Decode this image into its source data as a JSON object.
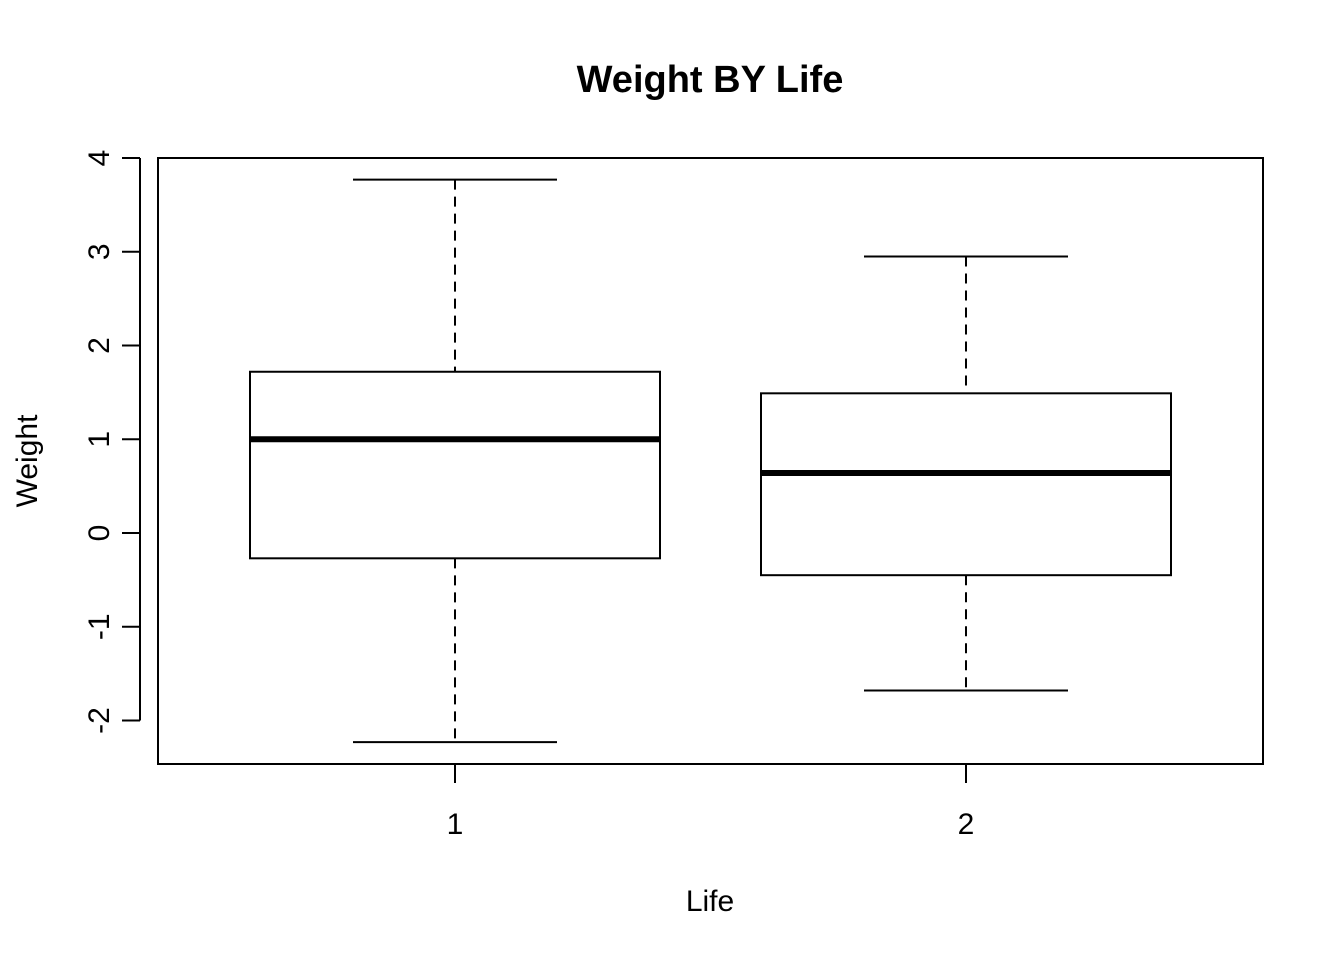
{
  "chart_data": {
    "type": "box",
    "title": "Weight BY Life",
    "xlabel": "Life",
    "ylabel": "Weight",
    "ylim": [
      -2.45,
      4.0
    ],
    "y_ticks": [
      "-2",
      "-1",
      "0",
      "1",
      "2",
      "3",
      "4"
    ],
    "grid": false,
    "categories": [
      "1",
      "2"
    ],
    "boxes": [
      {
        "category": "1",
        "whisker_low": -2.23,
        "q1": -0.27,
        "median": 1.0,
        "q3": 1.72,
        "whisker_high": 3.77
      },
      {
        "category": "2",
        "whisker_low": -1.68,
        "q1": -0.45,
        "median": 0.64,
        "q3": 1.49,
        "whisker_high": 2.95
      }
    ]
  }
}
